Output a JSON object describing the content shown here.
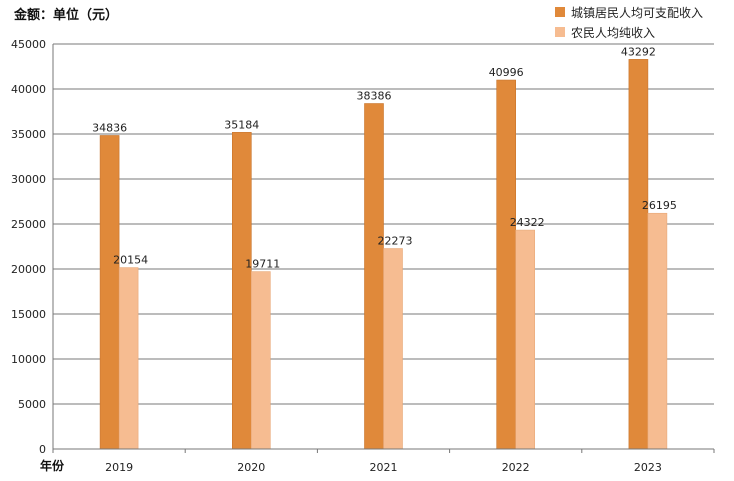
{
  "chart_data": {
    "type": "bar",
    "unit_label": "金额：单位（元）",
    "x_axis_label": "年份",
    "categories": [
      "2019",
      "2020",
      "2021",
      "2022",
      "2023"
    ],
    "series": [
      {
        "name": "城镇居民人均可支配收入",
        "color": "#E0893A",
        "values": [
          34836,
          35184,
          38386,
          40996,
          43292
        ]
      },
      {
        "name": "农民人均纯收入",
        "color": "#F6BC91",
        "values": [
          20154,
          19711,
          22273,
          24322,
          26195
        ]
      }
    ],
    "ylim": [
      0,
      45000
    ],
    "yticks": [
      0,
      5000,
      10000,
      15000,
      20000,
      25000,
      30000,
      35000,
      40000,
      45000
    ],
    "grid": true,
    "legend_position": "top-right"
  }
}
